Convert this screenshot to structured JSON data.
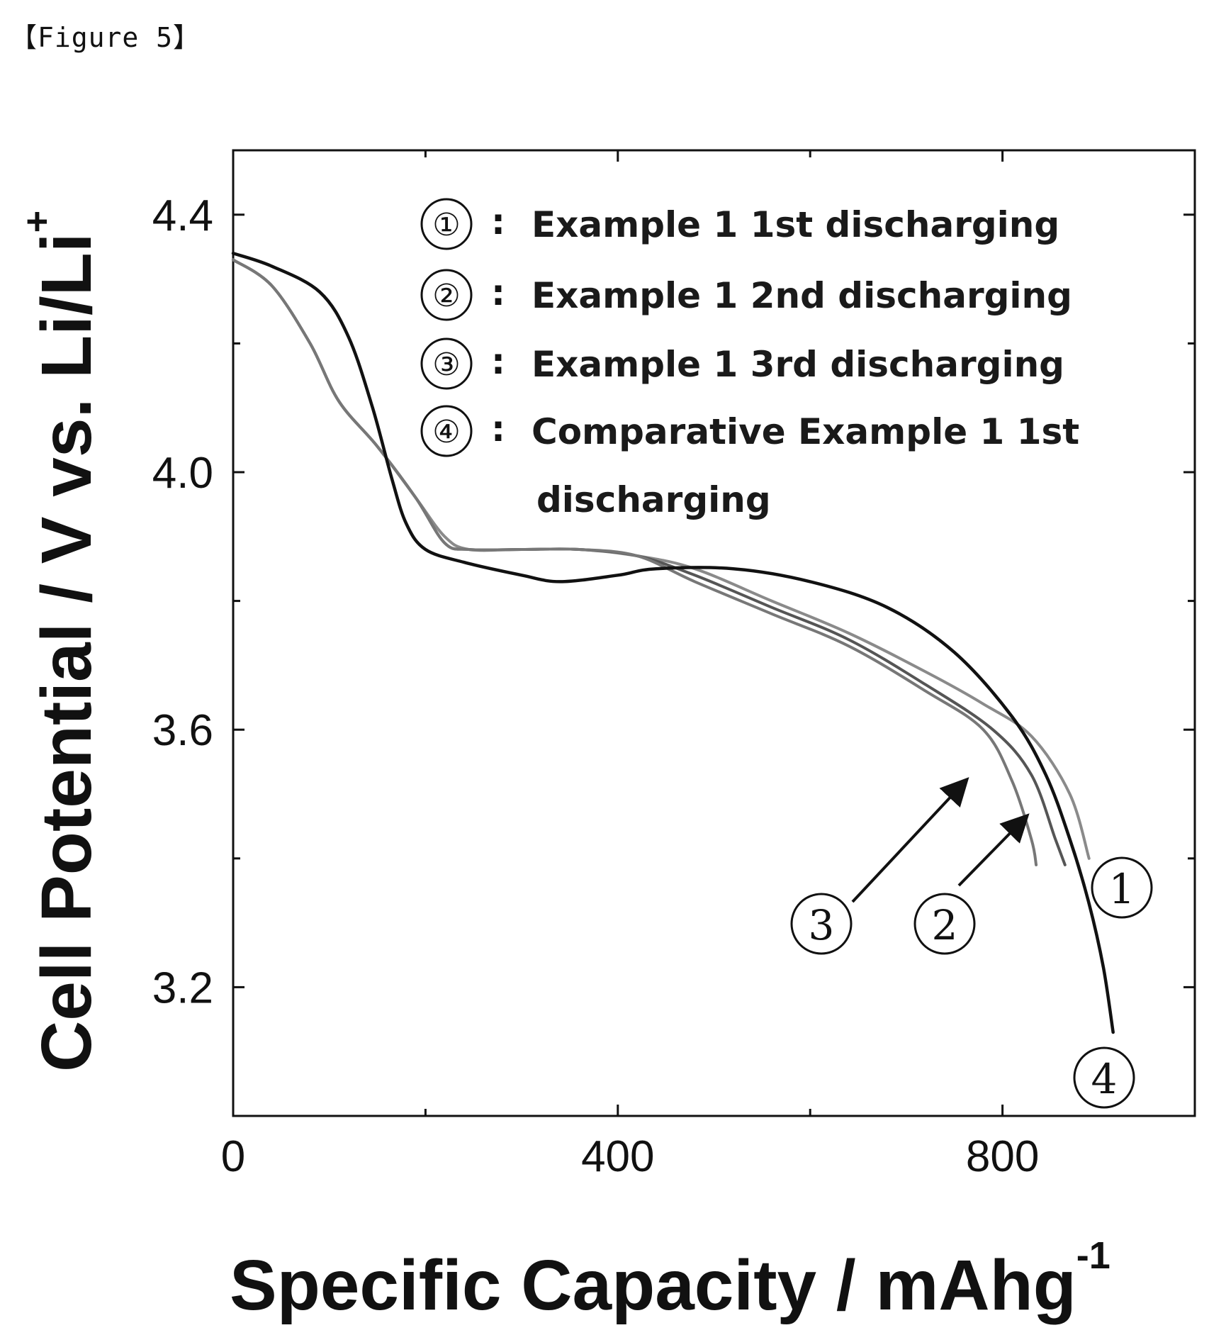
{
  "figure_label": "【Figure 5】",
  "chart_data": {
    "type": "line",
    "xlabel": "Specific Capacity / mAhg",
    "xlabel_sup": "-1",
    "ylabel": "Cell Potential  / V vs. Li/Li",
    "ylabel_sup": "+",
    "xlim": [
      0,
      1000
    ],
    "ylim": [
      3.0,
      4.5
    ],
    "x_ticks": [
      {
        "value": 0,
        "label": "0"
      },
      {
        "value": 400,
        "label": "400"
      },
      {
        "value": 800,
        "label": "800"
      }
    ],
    "y_ticks": [
      {
        "value": 3.2,
        "label": "3.2"
      },
      {
        "value": 3.6,
        "label": "3.6"
      },
      {
        "value": 4.0,
        "label": "4.0"
      },
      {
        "value": 4.4,
        "label": "4.4"
      }
    ],
    "minor_x_ticks": [
      200,
      600
    ],
    "minor_y_ticks": [
      3.4,
      3.8,
      4.2
    ],
    "legend": [
      {
        "symbol": "①",
        "sep": ":",
        "text": "Example 1 1st discharging"
      },
      {
        "symbol": "②",
        "sep": ":",
        "text": "Example 1 2nd discharging"
      },
      {
        "symbol": "③",
        "sep": ":",
        "text": "Example 1 3rd discharging"
      },
      {
        "symbol": "④",
        "sep": ":",
        "text": "Comparative Example 1 1st",
        "text2": "discharging"
      }
    ],
    "legend_position": "top-right",
    "series": [
      {
        "color": "#8a8a8a",
        "points": [
          [
            0,
            4.33
          ],
          [
            40,
            4.29
          ],
          [
            80,
            4.2
          ],
          [
            110,
            4.11
          ],
          [
            150,
            4.04
          ],
          [
            190,
            3.96
          ],
          [
            220,
            3.9
          ],
          [
            245,
            3.88
          ],
          [
            300,
            3.88
          ],
          [
            360,
            3.88
          ],
          [
            420,
            3.87
          ],
          [
            480,
            3.85
          ],
          [
            560,
            3.8
          ],
          [
            640,
            3.75
          ],
          [
            720,
            3.69
          ],
          [
            780,
            3.64
          ],
          [
            830,
            3.59
          ],
          [
            870,
            3.5
          ],
          [
            890,
            3.4
          ]
        ]
      },
      {
        "color": "#555555",
        "points": [
          [
            0,
            4.33
          ],
          [
            40,
            4.29
          ],
          [
            80,
            4.2
          ],
          [
            110,
            4.11
          ],
          [
            150,
            4.04
          ],
          [
            190,
            3.96
          ],
          [
            220,
            3.89
          ],
          [
            245,
            3.88
          ],
          [
            300,
            3.88
          ],
          [
            360,
            3.88
          ],
          [
            420,
            3.87
          ],
          [
            480,
            3.84
          ],
          [
            560,
            3.79
          ],
          [
            640,
            3.74
          ],
          [
            720,
            3.67
          ],
          [
            790,
            3.6
          ],
          [
            830,
            3.53
          ],
          [
            855,
            3.43
          ],
          [
            865,
            3.39
          ]
        ]
      },
      {
        "color": "#777777",
        "points": [
          [
            0,
            4.33
          ],
          [
            40,
            4.29
          ],
          [
            80,
            4.2
          ],
          [
            110,
            4.11
          ],
          [
            150,
            4.04
          ],
          [
            190,
            3.96
          ],
          [
            220,
            3.89
          ],
          [
            245,
            3.88
          ],
          [
            300,
            3.88
          ],
          [
            360,
            3.88
          ],
          [
            420,
            3.87
          ],
          [
            480,
            3.83
          ],
          [
            560,
            3.78
          ],
          [
            640,
            3.73
          ],
          [
            720,
            3.66
          ],
          [
            780,
            3.6
          ],
          [
            810,
            3.52
          ],
          [
            830,
            3.43
          ],
          [
            835,
            3.39
          ]
        ]
      },
      {
        "color": "#111111",
        "points": [
          [
            0,
            4.34
          ],
          [
            40,
            4.32
          ],
          [
            90,
            4.28
          ],
          [
            120,
            4.21
          ],
          [
            145,
            4.1
          ],
          [
            165,
            3.99
          ],
          [
            180,
            3.92
          ],
          [
            200,
            3.88
          ],
          [
            240,
            3.86
          ],
          [
            300,
            3.84
          ],
          [
            340,
            3.83
          ],
          [
            400,
            3.84
          ],
          [
            440,
            3.85
          ],
          [
            520,
            3.85
          ],
          [
            600,
            3.83
          ],
          [
            680,
            3.79
          ],
          [
            750,
            3.72
          ],
          [
            810,
            3.62
          ],
          [
            845,
            3.53
          ],
          [
            870,
            3.43
          ],
          [
            890,
            3.33
          ],
          [
            905,
            3.23
          ],
          [
            915,
            3.13
          ]
        ]
      }
    ],
    "annotations": [
      {
        "label": "1",
        "series": 0
      },
      {
        "label": "2",
        "series": 1
      },
      {
        "label": "3",
        "series": 2
      },
      {
        "label": "4",
        "series": 3
      }
    ]
  }
}
